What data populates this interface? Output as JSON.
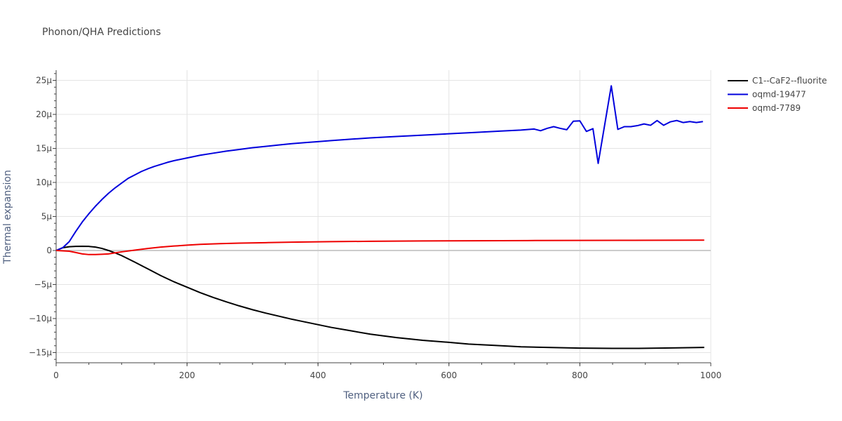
{
  "chart_data": {
    "type": "line",
    "title": "Phonon/QHA Predictions",
    "xlabel": "Temperature (K)",
    "ylabel": "Thermal expansion",
    "xlim": [
      0,
      1000
    ],
    "ylim": [
      -1.65e-05,
      2.65e-05
    ],
    "x_ticks": [
      0,
      200,
      400,
      600,
      800,
      1000
    ],
    "x_tick_labels": [
      "0",
      "200",
      "400",
      "600",
      "800",
      "1000"
    ],
    "y_ticks": [
      -1.5e-05,
      -1e-05,
      -5e-06,
      0,
      5e-06,
      1e-05,
      1.5e-05,
      2e-05,
      2.5e-05
    ],
    "y_tick_labels": [
      "−15μ",
      "−10μ",
      "−5μ",
      "0",
      "5μ",
      "10μ",
      "15μ",
      "20μ",
      "25μ"
    ],
    "grid": true,
    "legend_position": "top-right",
    "series": [
      {
        "name": "C1--CaF2--fluorite",
        "color": "#000000",
        "x": [
          0,
          10,
          20,
          30,
          40,
          50,
          60,
          70,
          80,
          90,
          100,
          120,
          140,
          160,
          180,
          200,
          220,
          240,
          260,
          280,
          300,
          320,
          340,
          360,
          380,
          400,
          420,
          450,
          480,
          520,
          560,
          600,
          630,
          670,
          710,
          750,
          800,
          850,
          890,
          940,
          990
        ],
        "y": [
          0,
          4e-07,
          5.5e-07,
          6e-07,
          6.2e-07,
          6e-07,
          5e-07,
          3e-07,
          0.0,
          -3.5e-07,
          -7.5e-07,
          -1.7e-06,
          -2.7e-06,
          -3.7e-06,
          -4.6e-06,
          -5.4e-06,
          -6.2e-06,
          -6.9e-06,
          -7.55e-06,
          -8.15e-06,
          -8.7e-06,
          -9.2e-06,
          -9.65e-06,
          -1.01e-05,
          -1.05e-05,
          -1.09e-05,
          -1.13e-05,
          -1.18e-05,
          -1.23e-05,
          -1.28e-05,
          -1.32e-05,
          -1.35e-05,
          -1.375e-05,
          -1.395e-05,
          -1.415e-05,
          -1.425e-05,
          -1.435e-05,
          -1.438e-05,
          -1.438e-05,
          -1.432e-05,
          -1.425e-05
        ]
      },
      {
        "name": "oqmd-19477",
        "color": "#0000dd",
        "x": [
          0,
          10,
          20,
          30,
          40,
          50,
          60,
          70,
          80,
          90,
          100,
          110,
          120,
          130,
          140,
          150,
          160,
          170,
          180,
          200,
          220,
          240,
          260,
          280,
          300,
          320,
          340,
          360,
          380,
          400,
          420,
          450,
          480,
          520,
          560,
          600,
          640,
          680,
          710,
          730,
          740,
          750,
          760,
          770,
          780,
          790,
          800,
          810,
          820,
          828,
          838,
          848,
          858,
          868,
          878,
          888,
          898,
          908,
          918,
          928,
          938,
          948,
          958,
          968,
          978,
          988
        ],
        "y": [
          0,
          4e-07,
          1.3e-06,
          2.8e-06,
          4.2e-06,
          5.4e-06,
          6.5e-06,
          7.5e-06,
          8.4e-06,
          9.2e-06,
          9.9e-06,
          1.06e-05,
          1.11e-05,
          1.16e-05,
          1.2e-05,
          1.235e-05,
          1.265e-05,
          1.295e-05,
          1.32e-05,
          1.36e-05,
          1.4e-05,
          1.43e-05,
          1.46e-05,
          1.485e-05,
          1.51e-05,
          1.53e-05,
          1.55e-05,
          1.57e-05,
          1.585e-05,
          1.6e-05,
          1.615e-05,
          1.635e-05,
          1.655e-05,
          1.675e-05,
          1.695e-05,
          1.715e-05,
          1.735e-05,
          1.755e-05,
          1.77e-05,
          1.785e-05,
          1.76e-05,
          1.795e-05,
          1.82e-05,
          1.795e-05,
          1.775e-05,
          1.9e-05,
          1.905e-05,
          1.75e-05,
          1.79e-05,
          1.28e-05,
          1.85e-05,
          2.42e-05,
          1.78e-05,
          1.82e-05,
          1.82e-05,
          1.835e-05,
          1.86e-05,
          1.84e-05,
          1.91e-05,
          1.84e-05,
          1.89e-05,
          1.91e-05,
          1.88e-05,
          1.895e-05,
          1.88e-05,
          1.895e-05
        ]
      },
      {
        "name": "oqmd-7789",
        "color": "#ee0000",
        "x": [
          0,
          10,
          20,
          30,
          40,
          50,
          60,
          70,
          80,
          90,
          100,
          120,
          140,
          160,
          180,
          200,
          220,
          250,
          280,
          320,
          360,
          420,
          480,
          560,
          640,
          720,
          800,
          880,
          990
        ],
        "y": [
          0,
          -5e-08,
          -1e-07,
          -3e-07,
          -5e-07,
          -6e-07,
          -6e-07,
          -5.5e-07,
          -5e-07,
          -3.5e-07,
          -2e-07,
          5e-08,
          3e-07,
          5e-07,
          6.5e-07,
          7.8e-07,
          9e-07,
          1e-06,
          1.08e-06,
          1.15e-06,
          1.22e-06,
          1.3e-06,
          1.35e-06,
          1.4e-06,
          1.43e-06,
          1.46e-06,
          1.48e-06,
          1.5e-06,
          1.52e-06
        ]
      }
    ]
  }
}
